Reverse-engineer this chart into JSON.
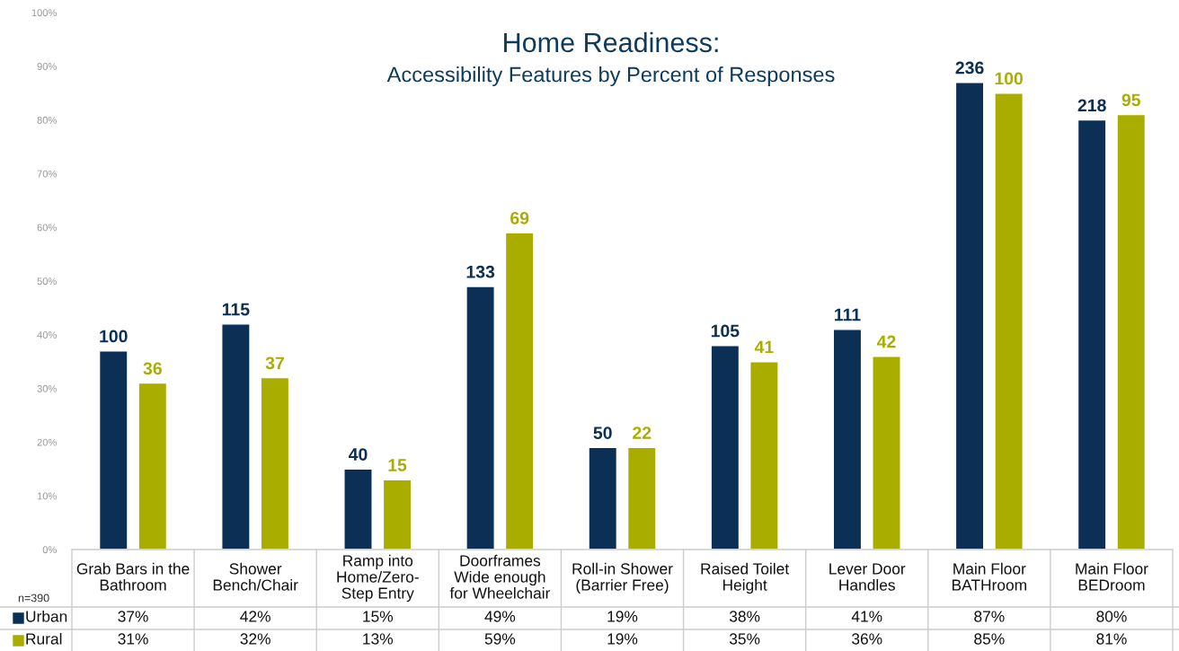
{
  "chart_data": {
    "type": "bar",
    "title": "Home Readiness:",
    "subtitle": "Accessibility Features by Percent of Responses",
    "categories": [
      "Grab Bars in the\nBathroom",
      "Shower\nBench/Chair",
      "Ramp into\nHome/Zero-\nStep Entry",
      "Doorframes\nWide enough\nfor Wheelchair",
      "Roll-in Shower\n(Barrier Free)",
      "Raised Toilet\nHeight",
      "Lever Door\nHandles",
      "Main Floor\nBATHroom",
      "Main Floor\nBEDroom"
    ],
    "series": [
      {
        "name": "Urban",
        "color": "#0c2f55",
        "values": [
          37,
          42,
          15,
          49,
          19,
          38,
          41,
          87,
          80
        ],
        "value_labels": [
          "37%",
          "42%",
          "15%",
          "49%",
          "19%",
          "38%",
          "41%",
          "87%",
          "80%"
        ]
      },
      {
        "name": "Rural",
        "color": "#a9ad00",
        "values": [
          31,
          32,
          13,
          59,
          19,
          35,
          36,
          85,
          81
        ],
        "value_labels": [
          "31%",
          "32%",
          "13%",
          "59%",
          "19%",
          "35%",
          "36%",
          "85%",
          "81%"
        ]
      }
    ],
    "ylim": [
      0,
      100
    ],
    "yticks": [
      {
        "value": 0,
        "label": "0%"
      },
      {
        "value": 10,
        "label": "10%"
      },
      {
        "value": 20,
        "label": "20%"
      },
      {
        "value": 30,
        "label": "30%"
      },
      {
        "value": 40,
        "label": "40%"
      },
      {
        "value": 50,
        "label": "50%"
      },
      {
        "value": 60,
        "label": "60%"
      },
      {
        "value": 70,
        "label": "70%"
      },
      {
        "value": 80,
        "label": "80%"
      },
      {
        "value": 90,
        "label": "90%"
      },
      {
        "value": 100,
        "label": "100%"
      }
    ],
    "legend": "bottom",
    "grid": false,
    "annotations": [
      "100",
      "36",
      "115",
      "37",
      "40",
      "15",
      "133",
      "69",
      "50",
      "22",
      "105",
      "41",
      "111",
      "42",
      "236",
      "100",
      "218",
      "95",
      "n=390"
    ]
  }
}
